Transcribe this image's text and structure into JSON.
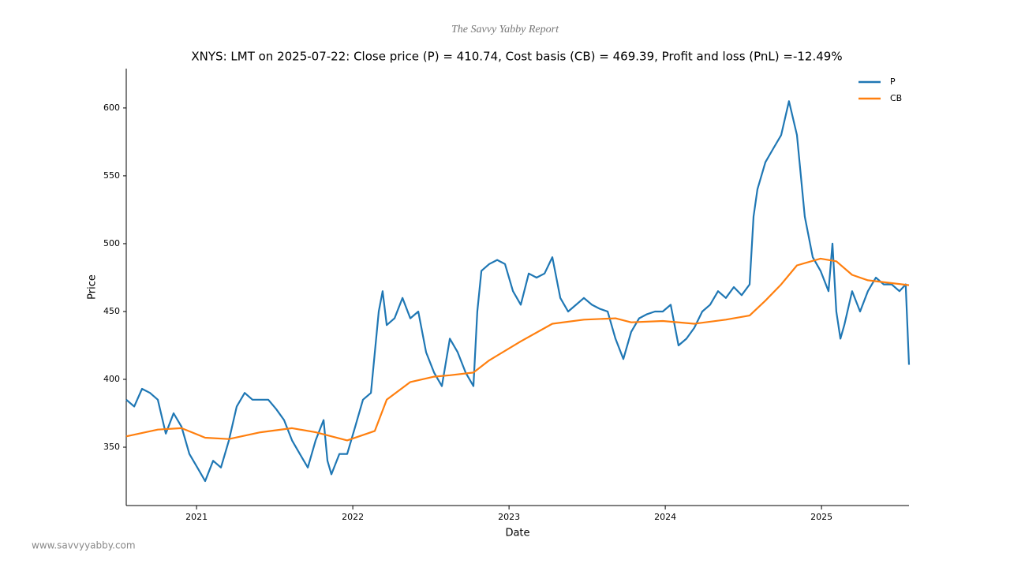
{
  "header": "The Savvy Yabby Report",
  "footer": "www.savvyyabby.com",
  "chart_data": {
    "type": "line",
    "title": "XNYS: LMT on 2025-07-22: Close price (P) = 410.74, Cost basis (CB) = 469.39, Profit and loss (PnL) =-12.49%",
    "x_label": "Date",
    "y_label": "Price",
    "xlim": [
      2020.55,
      2025.56
    ],
    "xticks": [
      2021,
      2022,
      2023,
      2024,
      2025
    ],
    "ylim": [
      307,
      629
    ],
    "yticks": [
      350,
      400,
      450,
      500,
      550,
      600
    ],
    "grid": false,
    "legend": "upper right",
    "series": [
      {
        "name": "P",
        "color": "#1f77b4",
        "x": [
          2020.55,
          2020.601,
          2020.651,
          2020.702,
          2020.752,
          2020.803,
          2020.853,
          2020.904,
          2020.954,
          2021.005,
          2021.055,
          2021.106,
          2021.156,
          2021.207,
          2021.257,
          2021.308,
          2021.358,
          2021.409,
          2021.459,
          2021.51,
          2021.56,
          2021.611,
          2021.661,
          2021.712,
          2021.762,
          2021.813,
          2021.838,
          2021.863,
          2021.914,
          2021.964,
          2022.015,
          2022.065,
          2022.116,
          2022.166,
          2022.191,
          2022.217,
          2022.267,
          2022.318,
          2022.368,
          2022.419,
          2022.469,
          2022.52,
          2022.57,
          2022.621,
          2022.671,
          2022.722,
          2022.772,
          2022.797,
          2022.823,
          2022.873,
          2022.924,
          2022.974,
          2023.025,
          2023.075,
          2023.126,
          2023.176,
          2023.227,
          2023.277,
          2023.328,
          2023.378,
          2023.429,
          2023.479,
          2023.53,
          2023.58,
          2023.631,
          2023.681,
          2023.732,
          2023.782,
          2023.833,
          2023.883,
          2023.934,
          2023.984,
          2024.035,
          2024.085,
          2024.136,
          2024.186,
          2024.237,
          2024.287,
          2024.338,
          2024.388,
          2024.439,
          2024.489,
          2024.54,
          2024.565,
          2024.59,
          2024.641,
          2024.691,
          2024.742,
          2024.792,
          2024.843,
          2024.893,
          2024.944,
          2024.994,
          2025.045,
          2025.07,
          2025.095,
          2025.121,
          2025.146,
          2025.196,
          2025.247,
          2025.297,
          2025.348,
          2025.398,
          2025.449,
          2025.499,
          2025.539,
          2025.56
        ],
        "values": [
          385,
          380,
          393,
          390,
          385,
          360,
          375,
          365,
          345,
          335,
          325,
          340,
          335,
          355,
          380,
          390,
          385,
          385,
          385,
          378,
          370,
          355,
          345,
          335,
          355,
          370,
          340,
          330,
          345,
          345,
          365,
          385,
          390,
          450,
          465,
          440,
          445,
          460,
          445,
          450,
          420,
          405,
          395,
          430,
          420,
          405,
          395,
          450,
          480,
          485,
          488,
          485,
          465,
          455,
          478,
          475,
          478,
          490,
          460,
          450,
          455,
          460,
          455,
          452,
          450,
          430,
          415,
          435,
          445,
          448,
          450,
          450,
          455,
          425,
          430,
          438,
          450,
          455,
          465,
          460,
          468,
          462,
          470,
          520,
          540,
          560,
          570,
          580,
          605,
          580,
          520,
          490,
          480,
          465,
          500,
          450,
          430,
          440,
          465,
          450,
          465,
          475,
          470,
          470,
          465,
          470,
          410.74
        ]
      },
      {
        "name": "CB",
        "color": "#ff7f0e",
        "x": [
          2020.55,
          2020.752,
          2020.904,
          2021.055,
          2021.207,
          2021.409,
          2021.611,
          2021.762,
          2021.964,
          2022.141,
          2022.217,
          2022.368,
          2022.52,
          2022.621,
          2022.772,
          2022.873,
          2023.075,
          2023.277,
          2023.479,
          2023.681,
          2023.782,
          2023.984,
          2024.186,
          2024.388,
          2024.54,
          2024.641,
          2024.742,
          2024.843,
          2024.994,
          2025.095,
          2025.196,
          2025.297,
          2025.56
        ],
        "values": [
          358,
          363,
          364,
          357,
          356,
          361,
          364,
          361,
          355,
          362,
          385,
          398,
          402,
          403,
          405,
          414,
          428,
          441,
          444,
          445,
          442,
          443,
          441,
          444,
          447,
          458,
          470,
          484,
          489,
          487,
          477,
          473,
          469.39
        ]
      }
    ]
  }
}
